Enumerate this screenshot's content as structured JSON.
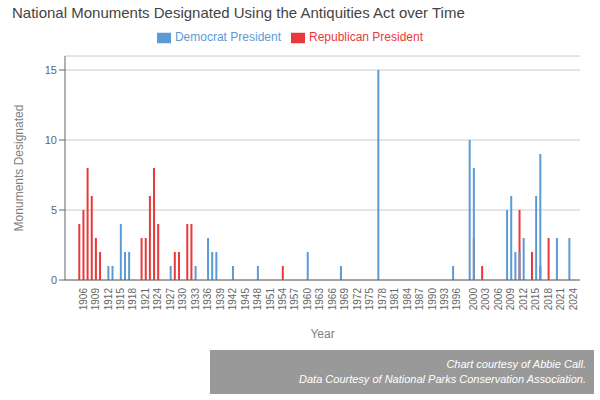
{
  "chart_data": {
    "type": "bar",
    "title": "National Monuments Designated Using the Antiquities Act over Time",
    "xlabel": "Year",
    "ylabel": "Monuments Designated",
    "annotation": "Chart courtesy of Abbie Call.\nData Courtesy of National Parks Conservation Association.",
    "x": [
      1906,
      1907,
      1908,
      1909,
      1910,
      1911,
      1913,
      1914,
      1916,
      1917,
      1918,
      1921,
      1922,
      1923,
      1924,
      1925,
      1928,
      1929,
      1930,
      1932,
      1933,
      1934,
      1937,
      1938,
      1939,
      1943,
      1949,
      1955,
      1961,
      1969,
      1978,
      1996,
      2000,
      2001,
      2003,
      2009,
      2010,
      2011,
      2012,
      2013,
      2015,
      2016,
      2017,
      2019,
      2021,
      2024
    ],
    "series": [
      {
        "name": "Republican President",
        "color": "#E8393A",
        "values": [
          4,
          5,
          8,
          6,
          3,
          2,
          null,
          null,
          null,
          null,
          null,
          3,
          3,
          6,
          8,
          4,
          null,
          2,
          2,
          4,
          4,
          null,
          null,
          null,
          null,
          null,
          null,
          1,
          null,
          null,
          null,
          null,
          null,
          3,
          1,
          null,
          null,
          null,
          5,
          null,
          2,
          null,
          1,
          3,
          null,
          null
        ]
      },
      {
        "name": "Democrat President",
        "color": "#5B9BD5",
        "values": [
          null,
          null,
          null,
          null,
          null,
          null,
          1,
          1,
          4,
          2,
          2,
          null,
          null,
          null,
          null,
          null,
          1,
          null,
          null,
          null,
          null,
          1,
          3,
          2,
          2,
          1,
          1,
          null,
          2,
          1,
          15,
          1,
          10,
          8,
          null,
          5,
          6,
          2,
          2,
          3,
          null,
          6,
          9,
          null,
          3,
          3
        ]
      }
    ],
    "xlim": [
      1903,
      2026
    ],
    "xticks": [
      1906,
      1909,
      1912,
      1915,
      1918,
      1921,
      1924,
      1927,
      1930,
      1933,
      1936,
      1939,
      1942,
      1945,
      1948,
      1951,
      1954,
      1957,
      1960,
      1963,
      1966,
      1969,
      1972,
      1975,
      1978,
      1981,
      1984,
      1987,
      1990,
      1993,
      1996,
      2000,
      2003,
      2006,
      2009,
      2012,
      2015,
      2018,
      2021,
      2024
    ],
    "ylim": [
      0,
      16
    ],
    "yticks": [
      0,
      5,
      10,
      15
    ],
    "grid": true
  }
}
